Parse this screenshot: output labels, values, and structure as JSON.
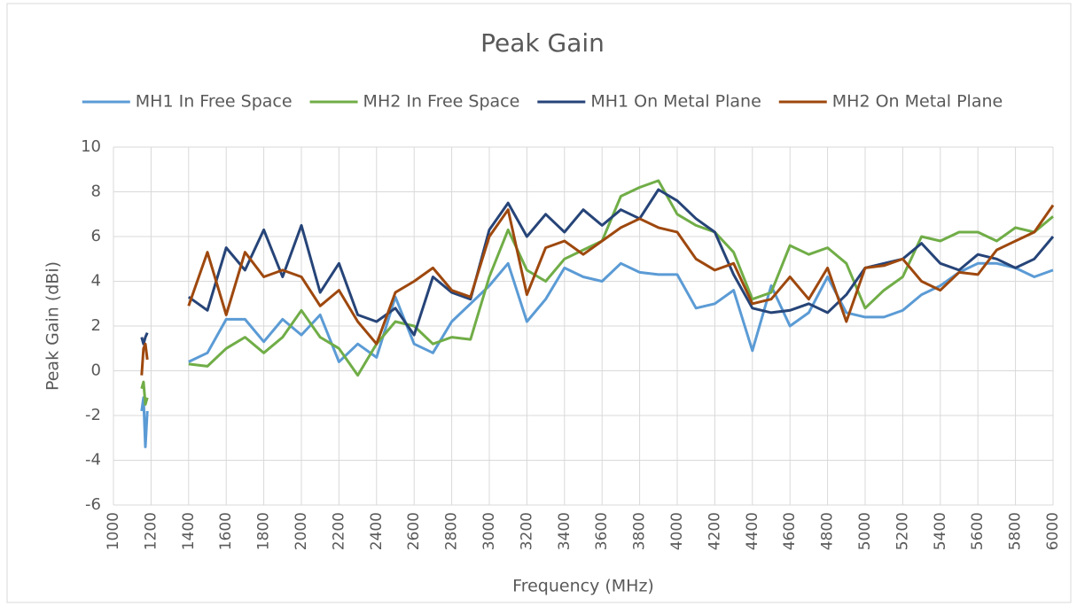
{
  "chart_data": {
    "type": "line",
    "title": "Peak Gain",
    "x_label": "Frequency (MHz)",
    "y_label": "Peak Gain (dBi)",
    "x": [
      1150,
      1160,
      1170,
      1180,
      1300,
      1400,
      1500,
      1600,
      1700,
      1800,
      1900,
      2000,
      2100,
      2200,
      2300,
      2400,
      2500,
      2600,
      2700,
      2800,
      2900,
      3000,
      3100,
      3200,
      3300,
      3400,
      3500,
      3600,
      3700,
      3800,
      3900,
      4000,
      4100,
      4200,
      4300,
      4400,
      4500,
      4600,
      4700,
      4800,
      4900,
      5000,
      5100,
      5200,
      5300,
      5400,
      5500,
      5600,
      5700,
      5800,
      5900,
      6000
    ],
    "series": [
      {
        "name": "MH1 In Free Space",
        "color": "#5b9bd5",
        "values": [
          -1.8,
          -1.2,
          -3.4,
          -1.8,
          null,
          0.4,
          0.8,
          2.3,
          2.3,
          1.3,
          2.3,
          1.6,
          2.5,
          0.4,
          1.2,
          0.6,
          3.3,
          1.2,
          0.8,
          2.2,
          3.0,
          3.8,
          4.8,
          2.2,
          3.2,
          4.6,
          4.2,
          4.0,
          4.8,
          4.4,
          4.3,
          4.3,
          2.8,
          3.0,
          3.6,
          0.9,
          3.8,
          2.0,
          2.6,
          4.2,
          2.6,
          2.4,
          2.4,
          2.7,
          3.4,
          3.8,
          4.4,
          4.8,
          4.8,
          4.6,
          4.2,
          4.5
        ]
      },
      {
        "name": "MH2 In Free Space",
        "color": "#70ad47",
        "values": [
          -0.8,
          -0.5,
          -1.5,
          -1.2,
          null,
          0.3,
          0.2,
          1.0,
          1.5,
          0.8,
          1.5,
          2.7,
          1.5,
          1.0,
          -0.2,
          1.2,
          2.2,
          2.0,
          1.2,
          1.5,
          1.4,
          4.2,
          6.3,
          4.5,
          4.0,
          5.0,
          5.4,
          5.8,
          7.8,
          8.2,
          8.5,
          7.0,
          6.5,
          6.2,
          5.3,
          3.2,
          3.5,
          5.6,
          5.2,
          5.5,
          4.8,
          2.8,
          3.6,
          4.2,
          6.0,
          5.8,
          6.2,
          6.2,
          5.8,
          6.4,
          6.2,
          6.9
        ]
      },
      {
        "name": "MH1 On Metal Plane",
        "color": "#264478",
        "values": [
          1.5,
          1.2,
          1.5,
          1.7,
          null,
          3.3,
          2.7,
          5.5,
          4.5,
          6.3,
          4.2,
          6.5,
          3.5,
          4.8,
          2.5,
          2.2,
          2.8,
          1.6,
          4.2,
          3.5,
          3.2,
          6.3,
          7.5,
          6.0,
          7.0,
          6.2,
          7.2,
          6.5,
          7.2,
          6.8,
          8.1,
          7.6,
          6.8,
          6.2,
          4.3,
          2.8,
          2.6,
          2.7,
          3.0,
          2.6,
          3.4,
          4.6,
          4.8,
          5.0,
          5.7,
          4.8,
          4.5,
          5.2,
          5.0,
          4.6,
          5.0,
          6.0
        ]
      },
      {
        "name": "MH2 On Metal Plane",
        "color": "#9e480e",
        "values": [
          -0.2,
          1.0,
          1.2,
          0.5,
          null,
          2.9,
          5.3,
          2.5,
          5.3,
          4.2,
          4.5,
          4.2,
          2.9,
          3.6,
          2.2,
          1.2,
          3.5,
          4.0,
          4.6,
          3.6,
          3.3,
          6.0,
          7.2,
          3.4,
          5.5,
          5.8,
          5.2,
          5.8,
          6.4,
          6.8,
          6.4,
          6.2,
          5.0,
          4.5,
          4.8,
          3.0,
          3.2,
          4.2,
          3.2,
          4.6,
          2.2,
          4.6,
          4.7,
          5.0,
          4.0,
          3.6,
          4.4,
          4.3,
          5.4,
          5.8,
          6.2,
          7.4
        ]
      }
    ],
    "xlim": [
      1000,
      6000
    ],
    "xticks": [
      1000,
      1200,
      1400,
      1600,
      1800,
      2000,
      2200,
      2400,
      2600,
      2800,
      3000,
      3200,
      3400,
      3600,
      3800,
      4000,
      4200,
      4400,
      4600,
      4800,
      5000,
      5200,
      5400,
      5600,
      5800,
      6000
    ],
    "ylim": [
      -6,
      10
    ],
    "yticks": [
      -6,
      -4,
      -2,
      0,
      2,
      4,
      6,
      8,
      10
    ],
    "grid": true,
    "legend": "top"
  }
}
